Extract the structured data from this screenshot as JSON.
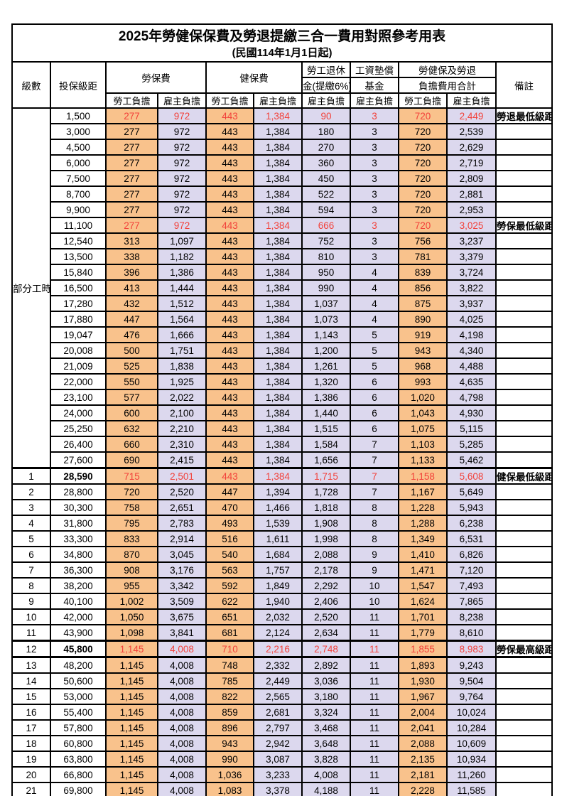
{
  "title": "2025年勞健保保費及勞退提繳三合一費用對照參考用表",
  "subtitle": "(民國114年1月1日起)",
  "header": {
    "level": "級數",
    "bracket": "投保級距",
    "labor_ins": "勞保費",
    "health_ins": "健保費",
    "pension_line1": "勞工退休",
    "pension_line2": "金(提繳6%)",
    "wage_fund_line1": "工資墊償",
    "wage_fund_line2": "基金",
    "total_line1": "勞健保及勞退",
    "total_line2": "負擔費用合計",
    "remark": "備註",
    "employee": "勞工負擔",
    "employer": "雇主負擔"
  },
  "part_time_label": "部分工時",
  "colors": {
    "employee_column_bg": "#f9c28c",
    "employer_column_bg": "#dcd8ee",
    "highlight_text": "#f2413a",
    "border": "#000000"
  },
  "rows": [
    {
      "lv": "",
      "br": "1,500",
      "a": "277",
      "b": "972",
      "c": "443",
      "d": "1,384",
      "e": "90",
      "f": "3",
      "g": "720",
      "h": "2,449",
      "rm": "勞退最低級距",
      "hl": true
    },
    {
      "lv": "",
      "br": "3,000",
      "a": "277",
      "b": "972",
      "c": "443",
      "d": "1,384",
      "e": "180",
      "f": "3",
      "g": "720",
      "h": "2,539",
      "rm": "",
      "hl": false
    },
    {
      "lv": "",
      "br": "4,500",
      "a": "277",
      "b": "972",
      "c": "443",
      "d": "1,384",
      "e": "270",
      "f": "3",
      "g": "720",
      "h": "2,629",
      "rm": "",
      "hl": false
    },
    {
      "lv": "",
      "br": "6,000",
      "a": "277",
      "b": "972",
      "c": "443",
      "d": "1,384",
      "e": "360",
      "f": "3",
      "g": "720",
      "h": "2,719",
      "rm": "",
      "hl": false
    },
    {
      "lv": "",
      "br": "7,500",
      "a": "277",
      "b": "972",
      "c": "443",
      "d": "1,384",
      "e": "450",
      "f": "3",
      "g": "720",
      "h": "2,809",
      "rm": "",
      "hl": false
    },
    {
      "lv": "",
      "br": "8,700",
      "a": "277",
      "b": "972",
      "c": "443",
      "d": "1,384",
      "e": "522",
      "f": "3",
      "g": "720",
      "h": "2,881",
      "rm": "",
      "hl": false
    },
    {
      "lv": "",
      "br": "9,900",
      "a": "277",
      "b": "972",
      "c": "443",
      "d": "1,384",
      "e": "594",
      "f": "3",
      "g": "720",
      "h": "2,953",
      "rm": "",
      "hl": false
    },
    {
      "lv": "",
      "br": "11,100",
      "a": "277",
      "b": "972",
      "c": "443",
      "d": "1,384",
      "e": "666",
      "f": "3",
      "g": "720",
      "h": "3,025",
      "rm": "勞保最低級距",
      "hl": true
    },
    {
      "lv": "",
      "br": "12,540",
      "a": "313",
      "b": "1,097",
      "c": "443",
      "d": "1,384",
      "e": "752",
      "f": "3",
      "g": "756",
      "h": "3,237",
      "rm": "",
      "hl": false
    },
    {
      "lv": "",
      "br": "13,500",
      "a": "338",
      "b": "1,182",
      "c": "443",
      "d": "1,384",
      "e": "810",
      "f": "3",
      "g": "781",
      "h": "3,379",
      "rm": "",
      "hl": false
    },
    {
      "lv": "",
      "br": "15,840",
      "a": "396",
      "b": "1,386",
      "c": "443",
      "d": "1,384",
      "e": "950",
      "f": "4",
      "g": "839",
      "h": "3,724",
      "rm": "",
      "hl": false
    },
    {
      "lv": "",
      "br": "16,500",
      "a": "413",
      "b": "1,444",
      "c": "443",
      "d": "1,384",
      "e": "990",
      "f": "4",
      "g": "856",
      "h": "3,822",
      "rm": "",
      "hl": false
    },
    {
      "lv": "",
      "br": "17,280",
      "a": "432",
      "b": "1,512",
      "c": "443",
      "d": "1,384",
      "e": "1,037",
      "f": "4",
      "g": "875",
      "h": "3,937",
      "rm": "",
      "hl": false
    },
    {
      "lv": "",
      "br": "17,880",
      "a": "447",
      "b": "1,564",
      "c": "443",
      "d": "1,384",
      "e": "1,073",
      "f": "4",
      "g": "890",
      "h": "4,025",
      "rm": "",
      "hl": false
    },
    {
      "lv": "",
      "br": "19,047",
      "a": "476",
      "b": "1,666",
      "c": "443",
      "d": "1,384",
      "e": "1,143",
      "f": "5",
      "g": "919",
      "h": "4,198",
      "rm": "",
      "hl": false
    },
    {
      "lv": "",
      "br": "20,008",
      "a": "500",
      "b": "1,751",
      "c": "443",
      "d": "1,384",
      "e": "1,200",
      "f": "5",
      "g": "943",
      "h": "4,340",
      "rm": "",
      "hl": false
    },
    {
      "lv": "",
      "br": "21,009",
      "a": "525",
      "b": "1,838",
      "c": "443",
      "d": "1,384",
      "e": "1,261",
      "f": "5",
      "g": "968",
      "h": "4,488",
      "rm": "",
      "hl": false
    },
    {
      "lv": "",
      "br": "22,000",
      "a": "550",
      "b": "1,925",
      "c": "443",
      "d": "1,384",
      "e": "1,320",
      "f": "6",
      "g": "993",
      "h": "4,635",
      "rm": "",
      "hl": false
    },
    {
      "lv": "",
      "br": "23,100",
      "a": "577",
      "b": "2,022",
      "c": "443",
      "d": "1,384",
      "e": "1,386",
      "f": "6",
      "g": "1,020",
      "h": "4,798",
      "rm": "",
      "hl": false
    },
    {
      "lv": "",
      "br": "24,000",
      "a": "600",
      "b": "2,100",
      "c": "443",
      "d": "1,384",
      "e": "1,440",
      "f": "6",
      "g": "1,043",
      "h": "4,930",
      "rm": "",
      "hl": false
    },
    {
      "lv": "",
      "br": "25,250",
      "a": "632",
      "b": "2,210",
      "c": "443",
      "d": "1,384",
      "e": "1,515",
      "f": "6",
      "g": "1,075",
      "h": "5,115",
      "rm": "",
      "hl": false
    },
    {
      "lv": "",
      "br": "26,400",
      "a": "660",
      "b": "2,310",
      "c": "443",
      "d": "1,384",
      "e": "1,584",
      "f": "7",
      "g": "1,103",
      "h": "5,285",
      "rm": "",
      "hl": false
    },
    {
      "lv": "",
      "br": "27,600",
      "a": "690",
      "b": "2,415",
      "c": "443",
      "d": "1,384",
      "e": "1,656",
      "f": "7",
      "g": "1,133",
      "h": "5,462",
      "rm": "",
      "hl": false
    },
    {
      "lv": "1",
      "br": "28,590",
      "a": "715",
      "b": "2,501",
      "c": "443",
      "d": "1,384",
      "e": "1,715",
      "f": "7",
      "g": "1,158",
      "h": "5,608",
      "rm": "健保最低級距",
      "hl": true
    },
    {
      "lv": "2",
      "br": "28,800",
      "a": "720",
      "b": "2,520",
      "c": "447",
      "d": "1,394",
      "e": "1,728",
      "f": "7",
      "g": "1,167",
      "h": "5,649",
      "rm": "",
      "hl": false
    },
    {
      "lv": "3",
      "br": "30,300",
      "a": "758",
      "b": "2,651",
      "c": "470",
      "d": "1,466",
      "e": "1,818",
      "f": "8",
      "g": "1,228",
      "h": "5,943",
      "rm": "",
      "hl": false
    },
    {
      "lv": "4",
      "br": "31,800",
      "a": "795",
      "b": "2,783",
      "c": "493",
      "d": "1,539",
      "e": "1,908",
      "f": "8",
      "g": "1,288",
      "h": "6,238",
      "rm": "",
      "hl": false
    },
    {
      "lv": "5",
      "br": "33,300",
      "a": "833",
      "b": "2,914",
      "c": "516",
      "d": "1,611",
      "e": "1,998",
      "f": "8",
      "g": "1,349",
      "h": "6,531",
      "rm": "",
      "hl": false
    },
    {
      "lv": "6",
      "br": "34,800",
      "a": "870",
      "b": "3,045",
      "c": "540",
      "d": "1,684",
      "e": "2,088",
      "f": "9",
      "g": "1,410",
      "h": "6,826",
      "rm": "",
      "hl": false
    },
    {
      "lv": "7",
      "br": "36,300",
      "a": "908",
      "b": "3,176",
      "c": "563",
      "d": "1,757",
      "e": "2,178",
      "f": "9",
      "g": "1,471",
      "h": "7,120",
      "rm": "",
      "hl": false
    },
    {
      "lv": "8",
      "br": "38,200",
      "a": "955",
      "b": "3,342",
      "c": "592",
      "d": "1,849",
      "e": "2,292",
      "f": "10",
      "g": "1,547",
      "h": "7,493",
      "rm": "",
      "hl": false
    },
    {
      "lv": "9",
      "br": "40,100",
      "a": "1,002",
      "b": "3,509",
      "c": "622",
      "d": "1,940",
      "e": "2,406",
      "f": "10",
      "g": "1,624",
      "h": "7,865",
      "rm": "",
      "hl": false
    },
    {
      "lv": "10",
      "br": "42,000",
      "a": "1,050",
      "b": "3,675",
      "c": "651",
      "d": "2,032",
      "e": "2,520",
      "f": "11",
      "g": "1,701",
      "h": "8,238",
      "rm": "",
      "hl": false
    },
    {
      "lv": "11",
      "br": "43,900",
      "a": "1,098",
      "b": "3,841",
      "c": "681",
      "d": "2,124",
      "e": "2,634",
      "f": "11",
      "g": "1,779",
      "h": "8,610",
      "rm": "",
      "hl": false
    },
    {
      "lv": "12",
      "br": "45,800",
      "a": "1,145",
      "b": "4,008",
      "c": "710",
      "d": "2,216",
      "e": "2,748",
      "f": "11",
      "g": "1,855",
      "h": "8,983",
      "rm": "勞保最高級距",
      "hl": true
    },
    {
      "lv": "13",
      "br": "48,200",
      "a": "1,145",
      "b": "4,008",
      "c": "748",
      "d": "2,332",
      "e": "2,892",
      "f": "11",
      "g": "1,893",
      "h": "9,243",
      "rm": "",
      "hl": false
    },
    {
      "lv": "14",
      "br": "50,600",
      "a": "1,145",
      "b": "4,008",
      "c": "785",
      "d": "2,449",
      "e": "3,036",
      "f": "11",
      "g": "1,930",
      "h": "9,504",
      "rm": "",
      "hl": false
    },
    {
      "lv": "15",
      "br": "53,000",
      "a": "1,145",
      "b": "4,008",
      "c": "822",
      "d": "2,565",
      "e": "3,180",
      "f": "11",
      "g": "1,967",
      "h": "9,764",
      "rm": "",
      "hl": false
    },
    {
      "lv": "16",
      "br": "55,400",
      "a": "1,145",
      "b": "4,008",
      "c": "859",
      "d": "2,681",
      "e": "3,324",
      "f": "11",
      "g": "2,004",
      "h": "10,024",
      "rm": "",
      "hl": false
    },
    {
      "lv": "17",
      "br": "57,800",
      "a": "1,145",
      "b": "4,008",
      "c": "896",
      "d": "2,797",
      "e": "3,468",
      "f": "11",
      "g": "2,041",
      "h": "10,284",
      "rm": "",
      "hl": false
    },
    {
      "lv": "18",
      "br": "60,800",
      "a": "1,145",
      "b": "4,008",
      "c": "943",
      "d": "2,942",
      "e": "3,648",
      "f": "11",
      "g": "2,088",
      "h": "10,609",
      "rm": "",
      "hl": false
    },
    {
      "lv": "19",
      "br": "63,800",
      "a": "1,145",
      "b": "4,008",
      "c": "990",
      "d": "3,087",
      "e": "3,828",
      "f": "11",
      "g": "2,135",
      "h": "10,934",
      "rm": "",
      "hl": false
    },
    {
      "lv": "20",
      "br": "66,800",
      "a": "1,145",
      "b": "4,008",
      "c": "1,036",
      "d": "3,233",
      "e": "4,008",
      "f": "11",
      "g": "2,181",
      "h": "11,260",
      "rm": "",
      "hl": false
    },
    {
      "lv": "21",
      "br": "69,800",
      "a": "1,145",
      "b": "4,008",
      "c": "1,083",
      "d": "3,378",
      "e": "4,188",
      "f": "11",
      "g": "2,228",
      "h": "11,585",
      "rm": "",
      "hl": false
    }
  ]
}
